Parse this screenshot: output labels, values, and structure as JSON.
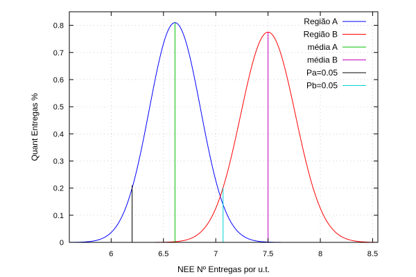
{
  "chart_data": {
    "type": "line",
    "title": "",
    "xlabel": "NEE  Nº Entregas por u.t.",
    "ylabel": "Quant Entregas %",
    "xlim": [
      5.6,
      8.55
    ],
    "ylim": [
      0,
      0.85
    ],
    "xticks": [
      6,
      6.5,
      7,
      7.5,
      8,
      8.5
    ],
    "xtick_labels": [
      "6",
      "6.5",
      "7",
      "7.5",
      "8",
      "8.5"
    ],
    "yticks": [
      0,
      0.1,
      0.2,
      0.3,
      0.4,
      0.5,
      0.6,
      0.7,
      0.8
    ],
    "ytick_labels": [
      "0",
      "0.1",
      "0.2",
      "0.3",
      "0.4",
      "0.5",
      "0.6",
      "0.7",
      "0.8"
    ],
    "grid": true,
    "legend_position": "top-right",
    "series": [
      {
        "name": "Região A",
        "kind": "normal",
        "mean": 6.61,
        "sd": 0.245,
        "peak": 0.81,
        "x_start": 5.6,
        "x_end": 8.55,
        "color": "#0000ff"
      },
      {
        "name": "Região B",
        "kind": "normal",
        "mean": 7.5,
        "sd": 0.262,
        "peak": 0.775,
        "x_start": 5.6,
        "x_end": 8.55,
        "color": "#ff0000"
      },
      {
        "name": "média A",
        "kind": "vline",
        "x": 6.61,
        "y_top": 0.81,
        "color": "#00c000"
      },
      {
        "name": "média B",
        "kind": "vline",
        "x": 7.5,
        "y_top": 0.775,
        "color": "#c000c0"
      },
      {
        "name": "Pa=0.05",
        "kind": "vline",
        "x": 6.2,
        "y_top": 0.21,
        "color": "#000000"
      },
      {
        "name": "Pb=0.05",
        "kind": "vline",
        "x": 7.07,
        "y_top": 0.2,
        "color": "#00d0d0"
      }
    ]
  }
}
